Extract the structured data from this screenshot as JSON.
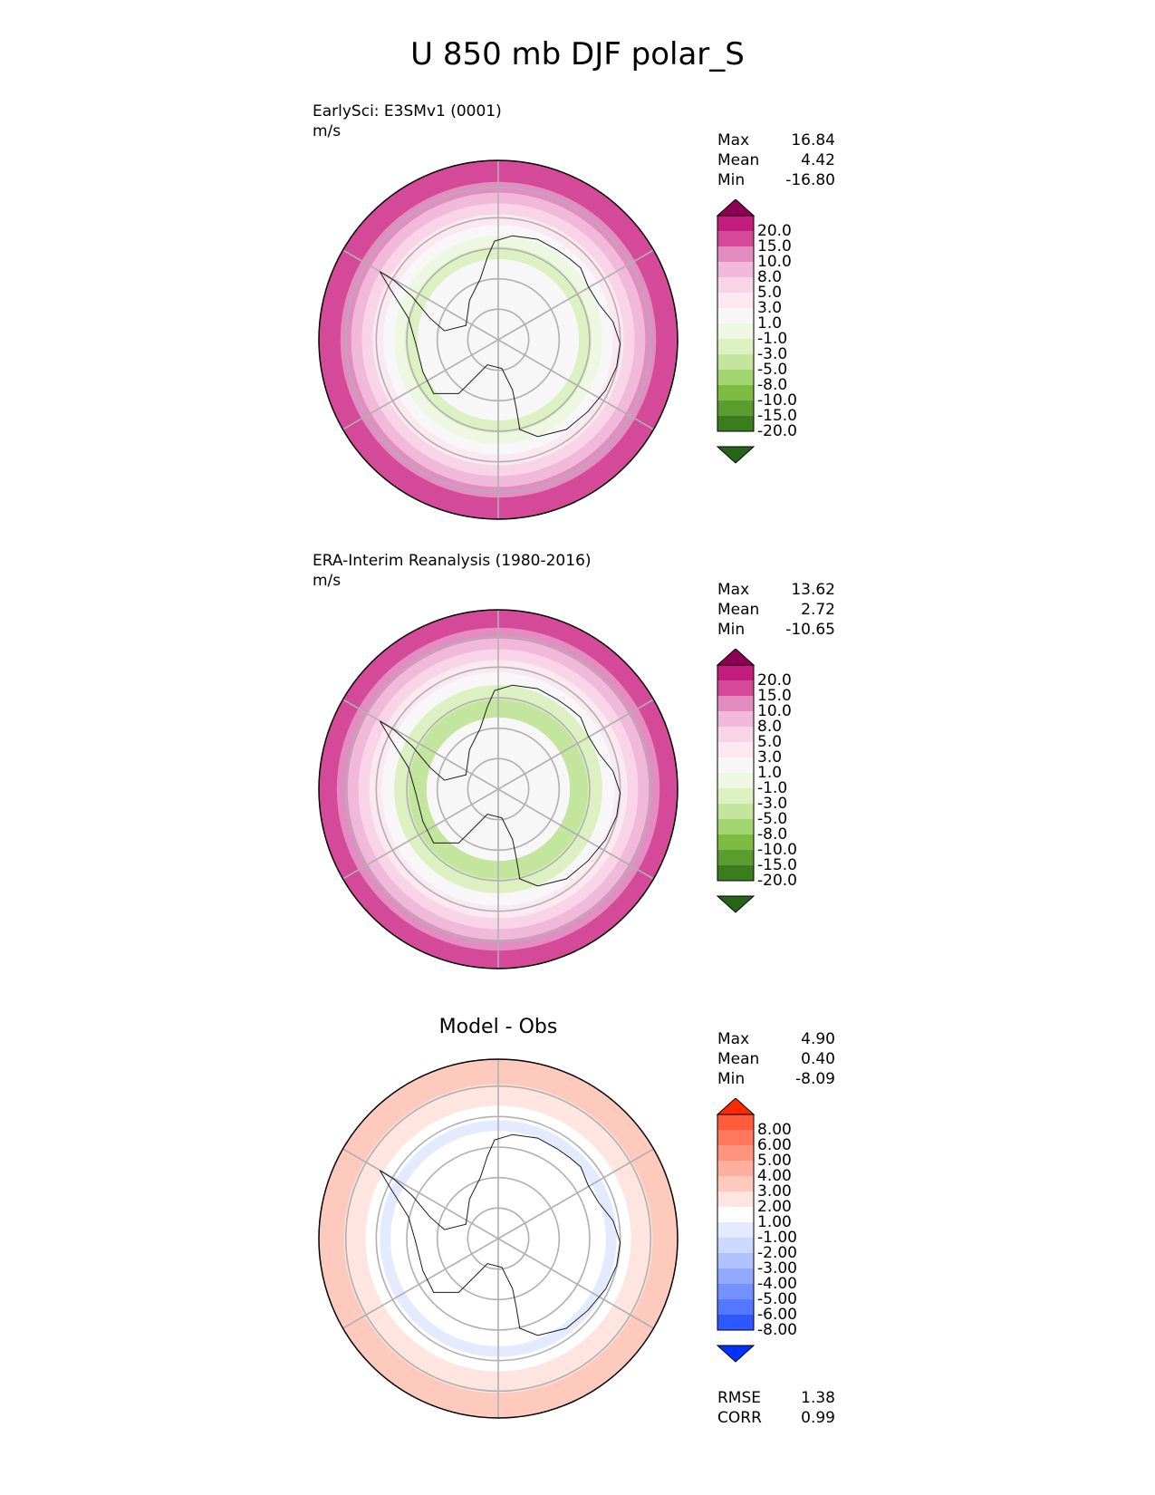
{
  "title": "U 850 mb DJF polar_S",
  "colors": {
    "test_ref_levels": [
      "#276419",
      "#3b7c1e",
      "#5a9d2e",
      "#7dbc42",
      "#a2d46f",
      "#c3e59e",
      "#dcf0c2",
      "#eef7e1",
      "#f7f7f7",
      "#fbe8f1",
      "#f9d3e7",
      "#f0b8d9",
      "#e38cc1",
      "#d54a98",
      "#c21d7d",
      "#8e0152"
    ],
    "diff_levels": [
      "#0033ff",
      "#2d58ff",
      "#5478ff",
      "#7591ff",
      "#93a9ff",
      "#b0c1ff",
      "#cdd8ff",
      "#e4eaff",
      "#ffffff",
      "#ffe5df",
      "#ffcabe",
      "#ffaf9e",
      "#ff937e",
      "#ff785d",
      "#ff5c3c",
      "#ff2b00"
    ]
  },
  "chart_data": [
    {
      "type": "heatmap",
      "projection": "polar-south-stereographic",
      "title_lines": [
        "EarlySci: E3SMv1 (0001)",
        "m/s"
      ],
      "stats": [
        {
          "label": "Max",
          "value": "16.84"
        },
        {
          "label": "Mean",
          "value": "4.42"
        },
        {
          "label": "Min",
          "value": "-16.80"
        }
      ],
      "colorbar": {
        "extend": "both",
        "tick_labels": [
          "20.0",
          "15.0",
          "10.0",
          "8.0",
          "5.0",
          "3.0",
          "1.0",
          "-1.0",
          "-3.0",
          "-5.0",
          "-8.0",
          "-10.0",
          "-15.0",
          "-20.0"
        ]
      },
      "zonal_profile": [
        {
          "radius": 0.0,
          "level": 8
        },
        {
          "radius": 0.45,
          "level": 8
        },
        {
          "radius": 0.52,
          "level": 6
        },
        {
          "radius": 0.58,
          "level": 7
        },
        {
          "radius": 0.64,
          "level": 8
        },
        {
          "radius": 0.7,
          "level": 9
        },
        {
          "radius": 0.76,
          "level": 10
        },
        {
          "radius": 0.82,
          "level": 11
        },
        {
          "radius": 0.88,
          "level": 12
        },
        {
          "radius": 0.94,
          "level": 13
        },
        {
          "radius": 1.0,
          "level": 13
        }
      ]
    },
    {
      "type": "heatmap",
      "projection": "polar-south-stereographic",
      "title_lines": [
        "ERA-Interim Reanalysis (1980-2016)",
        "m/s"
      ],
      "stats": [
        {
          "label": "Max",
          "value": "13.62"
        },
        {
          "label": "Mean",
          "value": "2.72"
        },
        {
          "label": "Min",
          "value": "-10.65"
        }
      ],
      "colorbar": {
        "extend": "both",
        "tick_labels": [
          "20.0",
          "15.0",
          "10.0",
          "8.0",
          "5.0",
          "3.0",
          "1.0",
          "-1.0",
          "-3.0",
          "-5.0",
          "-8.0",
          "-10.0",
          "-15.0",
          "-20.0"
        ]
      },
      "zonal_profile": [
        {
          "radius": 0.0,
          "level": 8
        },
        {
          "radius": 0.4,
          "level": 8
        },
        {
          "radius": 0.5,
          "level": 5
        },
        {
          "radius": 0.58,
          "level": 6
        },
        {
          "radius": 0.65,
          "level": 8
        },
        {
          "radius": 0.72,
          "level": 9
        },
        {
          "radius": 0.78,
          "level": 10
        },
        {
          "radius": 0.84,
          "level": 11
        },
        {
          "radius": 0.9,
          "level": 12
        },
        {
          "radius": 0.96,
          "level": 13
        },
        {
          "radius": 1.0,
          "level": 13
        }
      ]
    },
    {
      "type": "heatmap",
      "projection": "polar-south-stereographic",
      "title_centered": "Model - Obs",
      "stats": [
        {
          "label": "Max",
          "value": "4.90"
        },
        {
          "label": "Mean",
          "value": "0.40"
        },
        {
          "label": "Min",
          "value": "-8.09"
        }
      ],
      "colorbar": {
        "extend": "both",
        "tick_labels": [
          "8.00",
          "6.00",
          "5.00",
          "4.00",
          "3.00",
          "2.00",
          "1.00",
          "-1.00",
          "-2.00",
          "-3.00",
          "-4.00",
          "-5.00",
          "-6.00",
          "-8.00"
        ]
      },
      "metrics": [
        {
          "label": "RMSE",
          "value": "1.38"
        },
        {
          "label": "CORR",
          "value": "0.99"
        }
      ],
      "zonal_profile": [
        {
          "radius": 0.0,
          "level": 8
        },
        {
          "radius": 0.6,
          "level": 8
        },
        {
          "radius": 0.66,
          "level": 7
        },
        {
          "radius": 0.74,
          "level": 8
        },
        {
          "radius": 0.86,
          "level": 9
        },
        {
          "radius": 0.95,
          "level": 10
        },
        {
          "radius": 1.0,
          "level": 10
        }
      ]
    }
  ]
}
